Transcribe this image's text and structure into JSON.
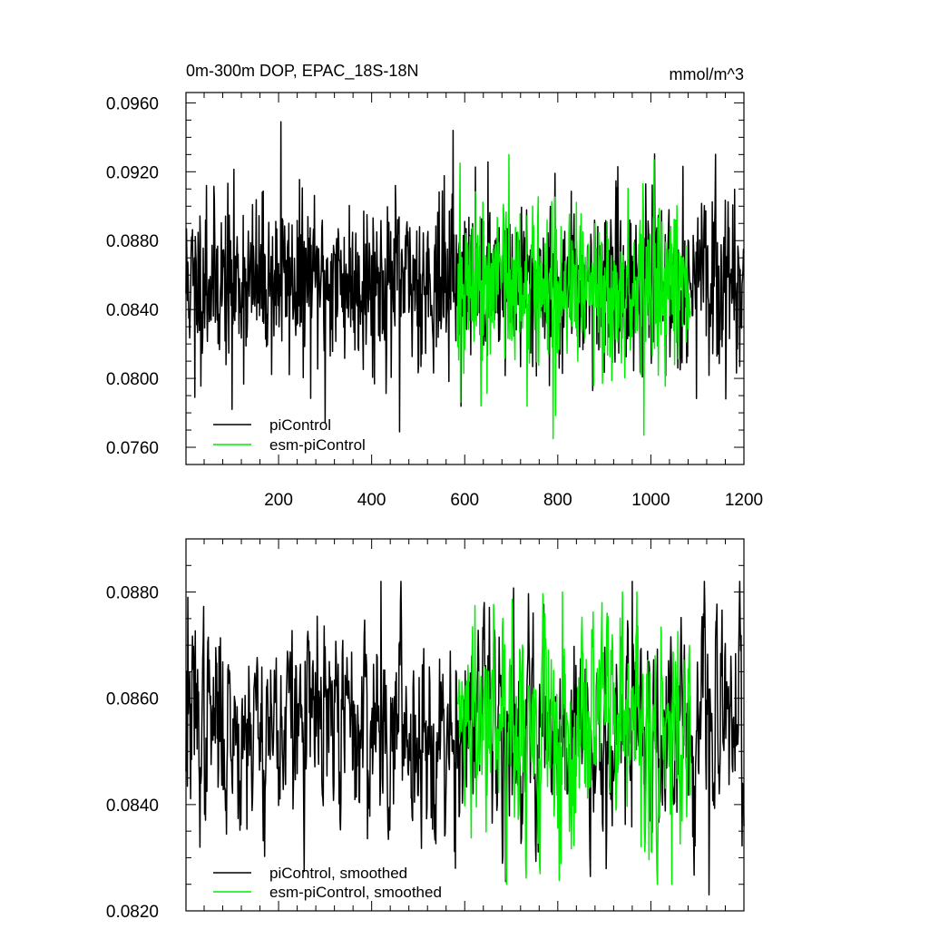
{
  "title_left": "0m-300m DOP, EPAC_18S-18N",
  "title_right": "mmol/m^3",
  "colors": {
    "piControl": "#000000",
    "esm_piControl": "#00ee00",
    "frame": "#000000"
  },
  "chart_data": [
    {
      "type": "line",
      "panel": "top",
      "title": "0m-300m DOP, EPAC_18S-18N",
      "units": "mmol/m^3",
      "xlabel": "",
      "ylabel": "",
      "xlim": [
        1,
        1200
      ],
      "ylim": [
        0.075,
        0.0966
      ],
      "x_ticks": [
        200,
        400,
        600,
        800,
        1000,
        1200
      ],
      "x_tick_labels": [
        "200",
        "400",
        "600",
        "800",
        "1000",
        "1200"
      ],
      "y_ticks": [
        0.076,
        0.08,
        0.084,
        0.088,
        0.092,
        0.096
      ],
      "y_tick_labels": [
        "0.0760",
        "0.0800",
        "0.0840",
        "0.0880",
        "0.0920",
        "0.0960"
      ],
      "legend_position": "bottom-left",
      "series": [
        {
          "name": "piControl",
          "color": "#000000",
          "x_start": 1,
          "x_end": 1200,
          "mean": 0.0856,
          "std": 0.0024,
          "min": 0.0769,
          "max": 0.0949,
          "marked_extremes": [
            [
              205,
              0.0949
            ],
            [
              575,
              0.0944
            ],
            [
              460,
              0.0769
            ],
            [
              100,
              0.0782
            ],
            [
              300,
              0.0774
            ],
            [
              20,
              0.0789
            ],
            [
              45,
              0.0912
            ]
          ]
        },
        {
          "name": "esm-piControl",
          "color": "#00ee00",
          "x_start": 585,
          "x_end": 1085,
          "mean": 0.0855,
          "std": 0.0025,
          "min": 0.0765,
          "max": 0.093,
          "marked_extremes": [
            [
              695,
              0.093
            ],
            [
              790,
              0.0765
            ],
            [
              985,
              0.0767
            ],
            [
              635,
              0.0784
            ],
            [
              590,
              0.0925
            ]
          ]
        }
      ]
    },
    {
      "type": "line",
      "panel": "bottom",
      "xlabel": "",
      "ylabel": "",
      "xlim": [
        1,
        1200
      ],
      "ylim": [
        0.082,
        0.089
      ],
      "x_ticks": [
        200,
        400,
        600,
        800,
        1000,
        1200
      ],
      "y_ticks": [
        0.082,
        0.084,
        0.086,
        0.088
      ],
      "y_tick_labels": [
        "0.0820",
        "0.0840",
        "0.0860",
        "0.0880"
      ],
      "legend_position": "bottom-left",
      "series": [
        {
          "name": "piControl, smoothed",
          "color": "#000000",
          "x_start": 1,
          "x_end": 1200,
          "mean": 0.0855,
          "std": 0.0011,
          "min": 0.0823,
          "max": 0.0882,
          "marked_extremes": [
            [
              5,
              0.0879
            ],
            [
              420,
              0.0882
            ],
            [
              960,
              0.0882
            ],
            [
              1125,
              0.0823
            ],
            [
              580,
              0.0828
            ]
          ]
        },
        {
          "name": "esm-piControl, smoothed",
          "color": "#00ee00",
          "x_start": 585,
          "x_end": 1085,
          "mean": 0.0855,
          "std": 0.0012,
          "min": 0.0825,
          "max": 0.088,
          "marked_extremes": [
            [
              810,
              0.088
            ],
            [
              1045,
              0.0825
            ],
            [
              895,
              0.0878
            ]
          ]
        }
      ]
    }
  ]
}
